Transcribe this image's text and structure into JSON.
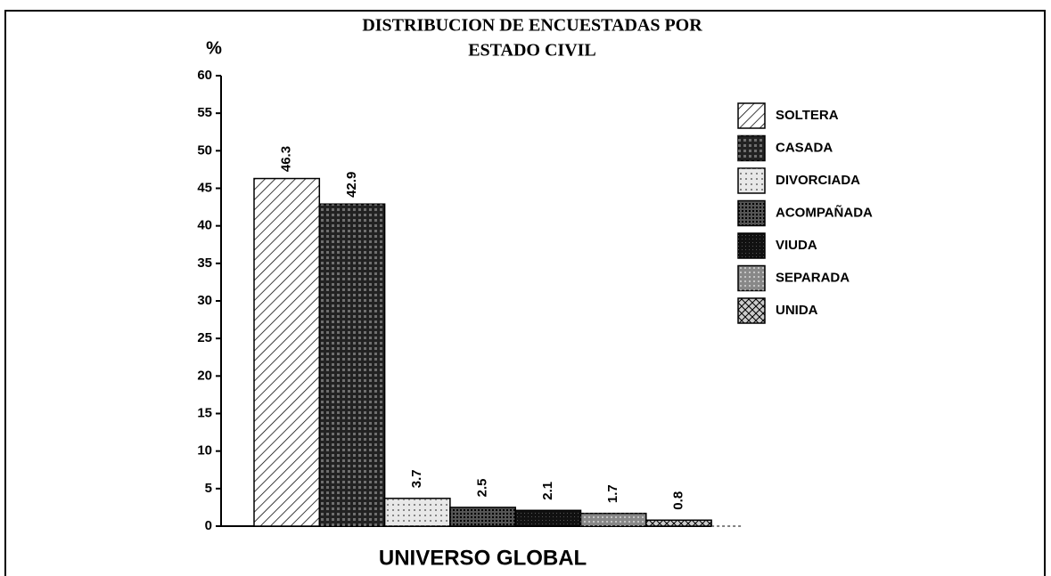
{
  "chart_data": {
    "type": "bar",
    "title": [
      "DISTRIBUCION DE ENCUESTADAS POR",
      "ESTADO CIVIL"
    ],
    "y_label": "%",
    "categories": [
      "UNIVERSO GLOBAL"
    ],
    "series": [
      {
        "name": "SOLTERA",
        "color": "#ffffff",
        "values": [
          46.3
        ]
      },
      {
        "name": "CASADA",
        "color": "#222222",
        "values": [
          42.9
        ]
      },
      {
        "name": "DIVORCIADA",
        "color": "#e8e8e8",
        "values": [
          3.7
        ]
      },
      {
        "name": "ACOMPAÑADA",
        "color": "#555555",
        "values": [
          2.5
        ]
      },
      {
        "name": "VIUDA",
        "color": "#111111",
        "values": [
          2.1
        ]
      },
      {
        "name": "SEPARADA",
        "color": "#888888",
        "values": [
          1.7
        ]
      },
      {
        "name": "UNIDA",
        "color": "#cccccc",
        "values": [
          0.8
        ]
      }
    ],
    "ylim": [
      0,
      60
    ],
    "yticks": [
      0,
      5,
      10,
      15,
      20,
      25,
      30,
      35,
      40,
      45,
      50,
      55,
      60
    ],
    "legend": "right"
  }
}
